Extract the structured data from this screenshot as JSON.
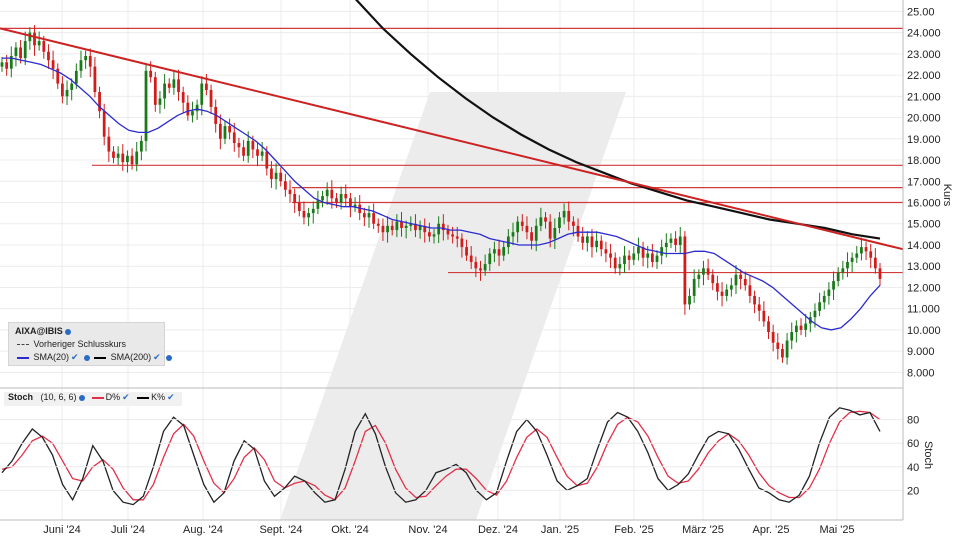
{
  "chart_data": [
    {
      "type": "candlestick",
      "symbol": "AIXA@IBIS",
      "ylabel": "Kurs",
      "ylim": [
        7.5,
        25.3
      ],
      "yticks": [
        "8.000",
        "9.000",
        "10.000",
        "11.000",
        "12.000",
        "13.000",
        "14.000",
        "15.000",
        "16.000",
        "17.000",
        "18.000",
        "19.000",
        "20.000",
        "21.000",
        "22.000",
        "23.000",
        "24.000",
        "25.00"
      ],
      "xticks": [
        "Juni '24",
        "Juli '24",
        "Aug. '24",
        "Sept. '24",
        "Okt. '24",
        "Nov. '24",
        "Dez. '24",
        "Jan. '25",
        "Feb. '25",
        "März '25",
        "Apr. '25",
        "Mai '25"
      ],
      "legend": {
        "symbol": "AIXA@IBIS",
        "prev_close": "Vorheriger Schlusskurs",
        "sma20": "SMA(20)",
        "sma200": "SMA(200)"
      },
      "colors": {
        "up": "#1a7a1a",
        "down": "#d11c1c",
        "sma20": "#2b2bd0",
        "sma200": "#111111",
        "trend": "#cc2222",
        "support": "#d23b3b"
      },
      "horizontal_lines": [
        24.2,
        17.75,
        16.7,
        16.0,
        12.7
      ],
      "trendline": {
        "from": [
          0,
          24.2
        ],
        "to": [
          240,
          13.8
        ]
      },
      "closes": [
        22.6,
        22.3,
        22.9,
        23.3,
        22.8,
        23.6,
        24.0,
        23.4,
        23.6,
        23.1,
        22.7,
        22.3,
        21.6,
        21.0,
        21.3,
        21.6,
        22.2,
        22.7,
        22.9,
        22.4,
        21.2,
        20.3,
        19.1,
        18.4,
        18.1,
        18.3,
        17.9,
        18.2,
        17.8,
        18.4,
        18.9,
        22.2,
        21.9,
        20.6,
        20.9,
        21.6,
        21.4,
        21.8,
        21.2,
        20.7,
        20.1,
        20.3,
        20.6,
        21.6,
        21.3,
        20.5,
        19.7,
        19.0,
        19.6,
        19.3,
        18.8,
        18.6,
        18.2,
        18.9,
        18.5,
        18.2,
        18.4,
        17.6,
        17.1,
        17.4,
        17.0,
        16.6,
        16.4,
        16.0,
        15.6,
        15.3,
        15.5,
        15.7,
        16.1,
        16.3,
        16.6,
        16.2,
        16.0,
        16.4,
        16.2,
        15.8,
        15.9,
        15.5,
        15.3,
        15.5,
        15.0,
        14.9,
        14.6,
        14.9,
        14.7,
        15.1,
        14.8,
        14.9,
        15.0,
        14.7,
        14.9,
        14.6,
        14.4,
        14.5,
        15.0,
        14.7,
        14.5,
        14.4,
        14.3,
        13.9,
        13.5,
        13.2,
        12.9,
        12.8,
        13.1,
        13.6,
        13.8,
        13.5,
        13.9,
        14.4,
        14.6,
        15.1,
        14.9,
        14.6,
        14.2,
        14.9,
        15.3,
        15.1,
        14.3,
        14.8,
        15.3,
        15.6,
        15.1,
        14.9,
        14.4,
        14.1,
        14.4,
        13.9,
        14.2,
        13.8,
        13.6,
        13.4,
        12.9,
        13.1,
        13.5,
        13.3,
        13.6,
        13.9,
        13.4,
        13.6,
        13.2,
        13.5,
        13.9,
        14.1,
        14.3,
        14.0,
        14.4,
        11.2,
        11.6,
        12.4,
        12.6,
        12.9,
        12.6,
        12.2,
        11.8,
        11.6,
        11.9,
        12.1,
        12.6,
        12.4,
        12.1,
        11.6,
        11.2,
        10.9,
        10.4,
        9.9,
        9.4,
        9.1,
        8.7,
        9.5,
        9.9,
        10.2,
        10.0,
        10.3,
        10.6,
        10.9,
        11.3,
        11.6,
        11.9,
        12.3,
        12.7,
        12.9,
        13.2,
        13.4,
        13.6,
        13.9,
        13.7,
        13.4,
        12.9,
        12.4
      ],
      "sma20": [
        22.8,
        22.8,
        22.7,
        22.6,
        22.5,
        22.3,
        22.1,
        21.8,
        21.4,
        21.0,
        20.5,
        20.1,
        19.7,
        19.4,
        19.3,
        19.3,
        19.5,
        19.8,
        20.1,
        20.3,
        20.4,
        20.3,
        20.1,
        19.8,
        19.5,
        19.2,
        18.9,
        18.5,
        18.0,
        17.5,
        17.0,
        16.6,
        16.2,
        16.0,
        15.9,
        15.8,
        15.8,
        15.7,
        15.6,
        15.4,
        15.2,
        15.1,
        15.0,
        14.9,
        14.8,
        14.8,
        14.7,
        14.7,
        14.6,
        14.5,
        14.3,
        14.2,
        14.1,
        14.0,
        14.0,
        14.0,
        14.1,
        14.3,
        14.5,
        14.6,
        14.6,
        14.6,
        14.5,
        14.4,
        14.2,
        14.0,
        13.8,
        13.7,
        13.6,
        13.6,
        13.6,
        13.7,
        13.7,
        13.6,
        13.3,
        13.0,
        12.7,
        12.5,
        12.3,
        12.0,
        11.6,
        11.2,
        10.8,
        10.4,
        10.1,
        10.0,
        10.1,
        10.5,
        11.0,
        11.6,
        12.1
      ],
      "sma200": [
        29.0,
        27.2,
        25.6,
        24.2,
        23.0,
        21.9,
        20.9,
        20.0,
        19.2,
        18.5,
        17.9,
        17.4,
        16.9,
        16.5,
        16.1,
        15.8,
        15.5,
        15.2,
        15.0,
        14.8,
        14.5,
        14.3
      ],
      "stochastic": {
        "label": "Stoch",
        "params": "(10, 6, 6)",
        "d_label": "D%",
        "k_label": "K%",
        "yticks": [
          "20",
          "40",
          "60",
          "80"
        ],
        "ylabel": "Stoch",
        "k": [
          35,
          45,
          60,
          72,
          65,
          50,
          25,
          12,
          30,
          58,
          45,
          20,
          10,
          8,
          15,
          40,
          70,
          82,
          75,
          50,
          25,
          10,
          18,
          45,
          62,
          55,
          28,
          15,
          22,
          32,
          28,
          18,
          10,
          12,
          38,
          70,
          85,
          68,
          40,
          18,
          10,
          12,
          20,
          35,
          38,
          42,
          35,
          20,
          12,
          18,
          45,
          70,
          80,
          70,
          50,
          28,
          20,
          24,
          30,
          55,
          78,
          86,
          82,
          70,
          52,
          30,
          20,
          25,
          34,
          50,
          65,
          70,
          68,
          55,
          38,
          22,
          18,
          12,
          10,
          16,
          32,
          60,
          82,
          90,
          88,
          84,
          86,
          70
        ],
        "d": [
          38,
          40,
          50,
          62,
          66,
          60,
          45,
          30,
          28,
          40,
          46,
          38,
          22,
          12,
          12,
          25,
          48,
          68,
          76,
          66,
          45,
          26,
          18,
          30,
          48,
          56,
          46,
          28,
          22,
          26,
          28,
          24,
          16,
          12,
          22,
          45,
          70,
          75,
          60,
          38,
          22,
          14,
          15,
          24,
          32,
          38,
          38,
          30,
          20,
          16,
          28,
          48,
          65,
          72,
          65,
          48,
          32,
          24,
          26,
          40,
          60,
          76,
          82,
          78,
          66,
          48,
          32,
          26,
          28,
          38,
          52,
          62,
          68,
          62,
          50,
          35,
          24,
          18,
          14,
          14,
          22,
          38,
          60,
          78,
          86,
          87,
          86,
          80
        ]
      }
    }
  ]
}
